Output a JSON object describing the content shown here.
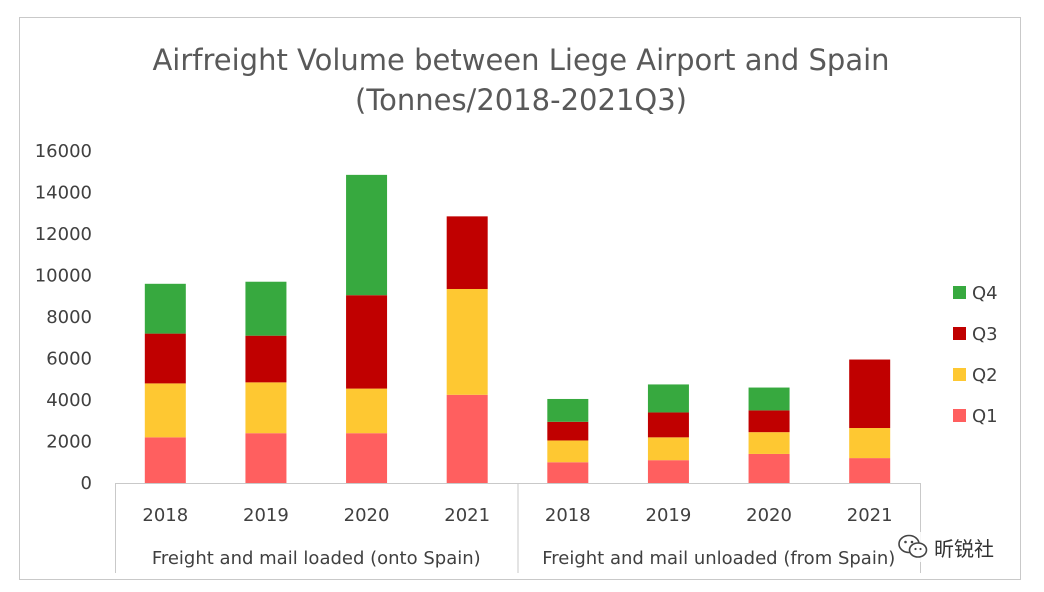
{
  "chart_data": {
    "type": "bar",
    "stacked": true,
    "title": [
      "Airfreight Volume between Liege Airport and Spain",
      "(Tonnes/2018-2021Q3)"
    ],
    "ylim": [
      0,
      16000
    ],
    "yticks": [
      0,
      2000,
      4000,
      6000,
      8000,
      10000,
      12000,
      14000,
      16000
    ],
    "groups": [
      {
        "label": "Freight and mail loaded (onto Spain)",
        "categories": [
          "2018",
          "2019",
          "2020",
          "2021"
        ]
      },
      {
        "label": "Freight and mail unloaded (from Spain)",
        "categories": [
          "2018",
          "2019",
          "2020",
          "2021"
        ]
      }
    ],
    "series": [
      {
        "name": "Q1",
        "color": "#ff5f5f",
        "values": [
          2200,
          2400,
          2400,
          4250,
          1000,
          1100,
          1400,
          1200
        ]
      },
      {
        "name": "Q2",
        "color": "#fec832",
        "values": [
          2600,
          2450,
          2150,
          5100,
          1050,
          1100,
          1050,
          1450
        ]
      },
      {
        "name": "Q3",
        "color": "#c00000",
        "values": [
          2400,
          2250,
          4500,
          3500,
          900,
          1200,
          1050,
          3300
        ]
      },
      {
        "name": "Q4",
        "color": "#37a93f",
        "values": [
          2400,
          2600,
          5800,
          0,
          1100,
          1350,
          1100,
          0
        ]
      }
    ],
    "legend_position": "right",
    "legend_order": [
      "Q4",
      "Q3",
      "Q2",
      "Q1"
    ],
    "grid": false
  },
  "watermark": {
    "icon": "wechat-icon",
    "text": "昕锐社"
  }
}
